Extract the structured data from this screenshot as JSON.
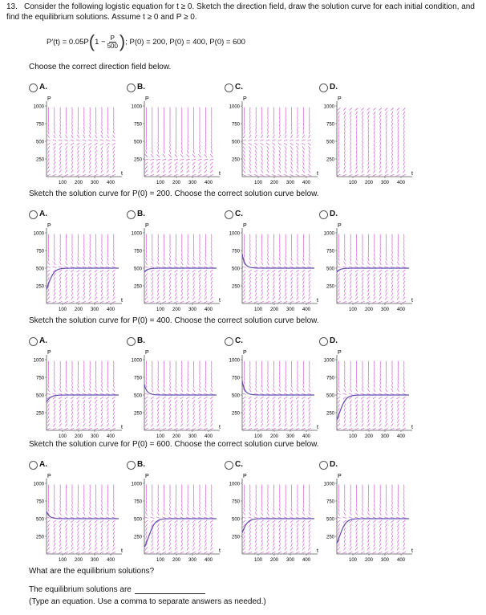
{
  "problem": {
    "number": "13.",
    "text": "Consider the following logistic equation for t ≥ 0. Sketch the direction field, draw the solution curve for each initial condition, and find the equilibrium solutions. Assume t ≥ 0 and P ≥ 0."
  },
  "equation": {
    "lhs": "P′(t) = 0.05P",
    "one_minus": "1 −",
    "numer": "P",
    "denom": "500",
    "conditions": "; P(0) = 200, P(0) = 400, P(0) = 600"
  },
  "questions": [
    {
      "prompt": "Choose the correct direction field below.",
      "curve": null
    },
    {
      "prompt": "Sketch the solution curve for P(0) = 200. Choose the correct solution curve below.",
      "curve": 200
    },
    {
      "prompt": "Sketch the solution curve for P(0) = 400. Choose the correct solution curve below.",
      "curve": 400
    },
    {
      "prompt": "Sketch the solution curve for P(0) = 600. Choose the correct solution curve below.",
      "curve": 600
    }
  ],
  "choice_letters": [
    "A.",
    "B.",
    "C.",
    "D."
  ],
  "axis": {
    "p_label": "P",
    "t_label": "t",
    "y_ticks": [
      "1000",
      "750",
      "500",
      "250"
    ],
    "x_ticks": [
      "100",
      "200",
      "300",
      "400"
    ]
  },
  "colors": {
    "field": "#d45ad4",
    "curve": "#5b4fb3",
    "axis": "#555555"
  },
  "footer": {
    "question": "What are the equilibrium solutions?",
    "answer_prefix": "The equilibrium solutions are",
    "answer_value": "",
    "hint": "(Type an equation. Use a comma to separate answers as needed.)"
  }
}
